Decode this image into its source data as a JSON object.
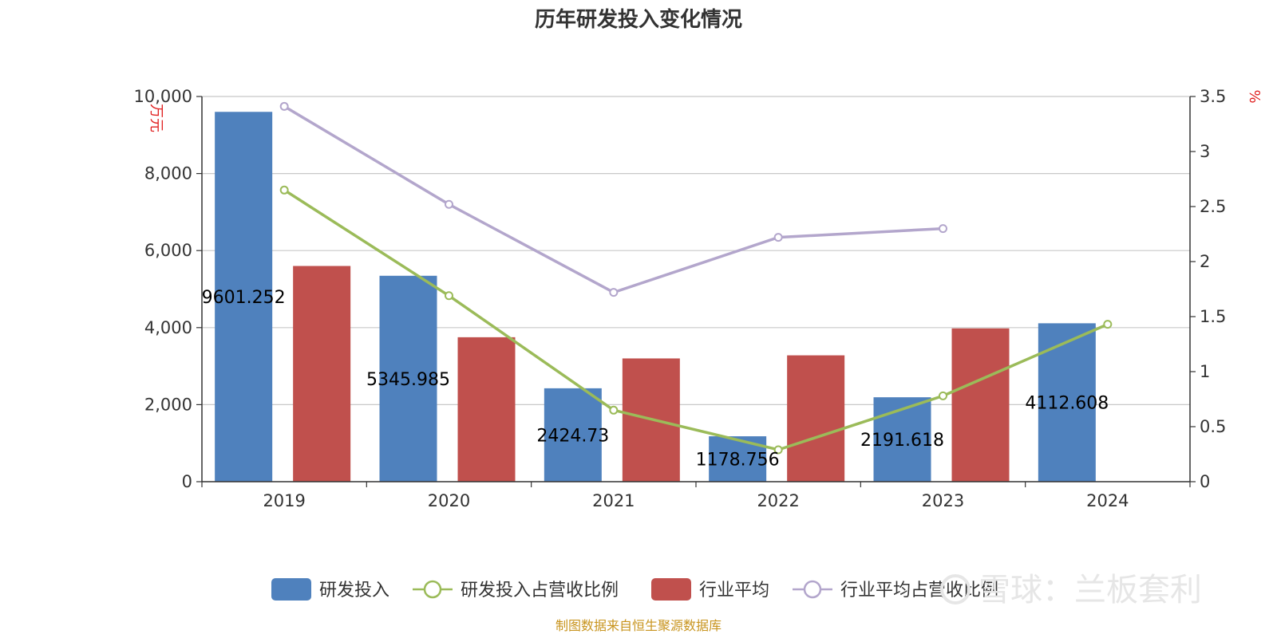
{
  "chart_data": {
    "type": "bar",
    "title": "历年研发投入变化情况",
    "categories": [
      "2019",
      "2020",
      "2021",
      "2022",
      "2023",
      "2024"
    ],
    "y_left_label": "万元",
    "y_right_label": "%",
    "y_left_lim": [
      0,
      10000
    ],
    "y_right_lim": [
      0,
      3.5
    ],
    "y_left_ticks": [
      "0",
      "2,000",
      "4,000",
      "6,000",
      "8,000",
      "10,000"
    ],
    "y_right_ticks": [
      "0",
      "0.5",
      "1",
      "1.5",
      "2",
      "2.5",
      "3",
      "3.5"
    ],
    "grid": true,
    "legend_position": "bottom",
    "series": [
      {
        "name": "研发投入",
        "kind": "bar",
        "axis": "left",
        "color": "#4f81bd",
        "values": [
          9601.252,
          5345.985,
          2424.73,
          1178.756,
          2191.618,
          4112.608
        ],
        "labels": [
          "9601.252",
          "5345.985",
          "2424.73",
          "1178.756",
          "2191.618",
          "4112.608"
        ]
      },
      {
        "name": "研发投入占营收比例",
        "kind": "line",
        "axis": "right",
        "color": "#9bbb59",
        "values": [
          2.65,
          1.69,
          0.65,
          0.29,
          0.78,
          1.43
        ]
      },
      {
        "name": "行业平均",
        "kind": "bar",
        "axis": "left",
        "color": "#c0504d",
        "values": [
          5600,
          3750,
          3200,
          3280,
          3980,
          null
        ]
      },
      {
        "name": "行业平均占营收比例",
        "kind": "line",
        "axis": "right",
        "color": "#b3a6cc",
        "values": [
          3.41,
          2.52,
          1.72,
          2.22,
          2.3,
          null
        ]
      }
    ],
    "source": "制图数据来自恒生聚源数据库",
    "watermark": "雪球：兰板套利"
  }
}
